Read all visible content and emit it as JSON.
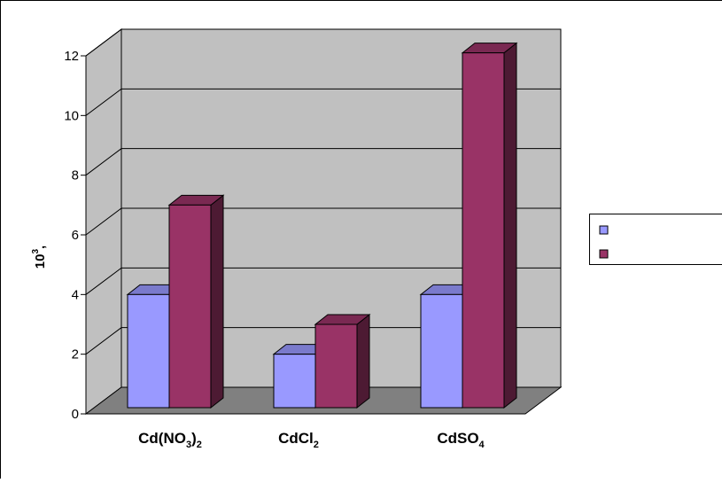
{
  "chart_data": {
    "type": "bar",
    "title": "",
    "xlabel": "",
    "ylabel": "10",
    "ylabel_sup": "3",
    "ylabel_suffix": ",",
    "ylim": [
      0,
      12
    ],
    "yticks": [
      "0",
      "2",
      "4",
      "6",
      "8",
      "10",
      "12"
    ],
    "grid": true,
    "legend_position": "right",
    "categories": [
      {
        "main": "Cd(NO",
        "sub": "3",
        "tail": ")",
        "sub2": "2"
      },
      {
        "main": "CdCl",
        "sub": "2",
        "tail": "",
        "sub2": ""
      },
      {
        "main": "CdSO",
        "sub": "4",
        "tail": "",
        "sub2": ""
      }
    ],
    "series": [
      {
        "values": [
          4,
          2,
          4
        ],
        "color": "#9999ff"
      },
      {
        "values": [
          7,
          3,
          12.1
        ],
        "color": "#993366"
      }
    ]
  }
}
